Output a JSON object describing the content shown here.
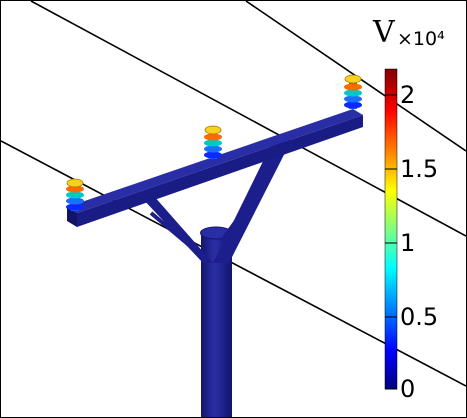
{
  "colorbar": {
    "unit": "V",
    "scale": "×10⁴",
    "ticks": [
      "2",
      "1.5",
      "1",
      "0.5",
      "0"
    ],
    "colors": [
      "#800000",
      "#ff0000",
      "#ffff00",
      "#00ffff",
      "#0000ff",
      "#000080"
    ]
  },
  "scene": {
    "pole_color": "#1c1e8c",
    "wire_color": "#000000",
    "insulator_colors": [
      "#f5d21c",
      "#ff6a00",
      "#00c8c8",
      "#1a6fff"
    ]
  }
}
